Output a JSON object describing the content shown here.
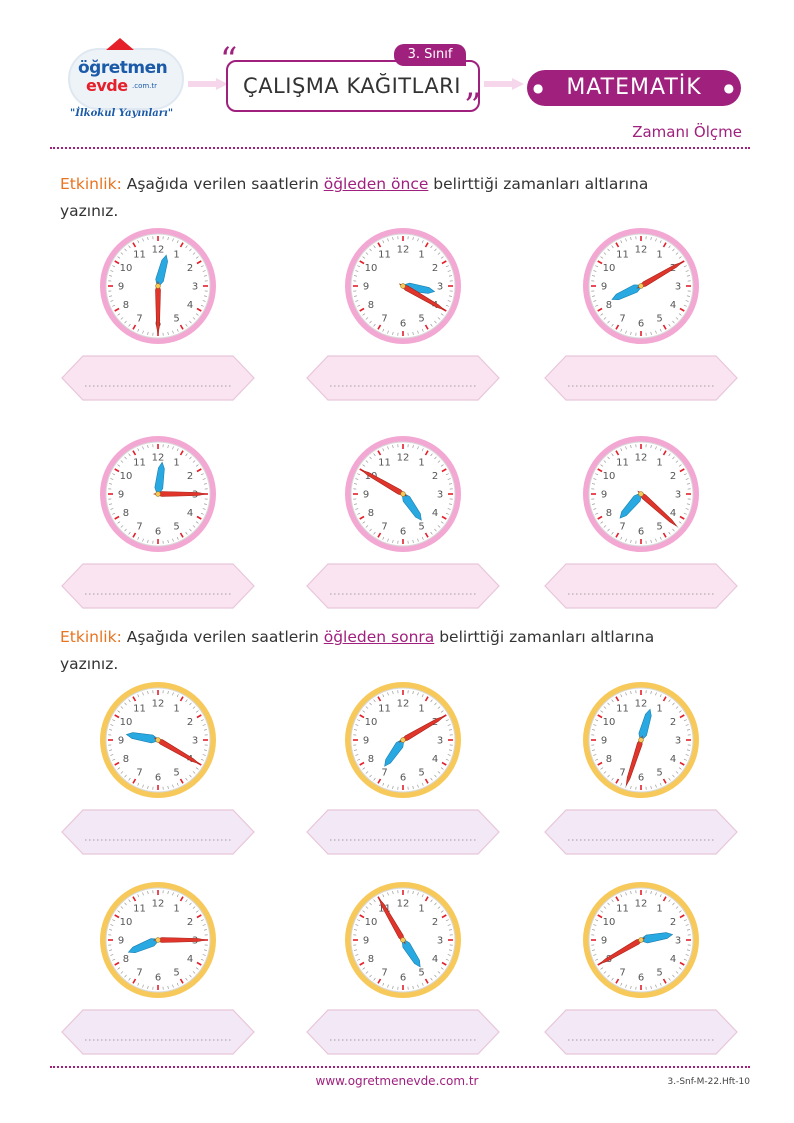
{
  "header": {
    "logo_line1": "öğretmen",
    "logo_line2": "evde",
    "logo_domain": ".com.tr",
    "logo_tagline": "\"İlkokul Yayınları\"",
    "grade": "3. Sınıf",
    "title": "ÇALIŞMA KAĞITLARI",
    "subject": "MATEMATİK",
    "topic": "Zamanı Ölçme"
  },
  "section1": {
    "label": "Etkinlik:",
    "text_before": " Aşağıda verilen saatlerin ",
    "highlight": "öğleden önce",
    "text_after": " belirttiği zamanları altlarına yazınız.",
    "ring_color": "#f2a8d2",
    "box_color": "#fbe4f1",
    "clocks": [
      {
        "hour": 12,
        "minute": 30
      },
      {
        "hour": 3,
        "minute": 20
      },
      {
        "hour": 8,
        "minute": 10
      },
      {
        "hour": 12,
        "minute": 15
      },
      {
        "hour": 4,
        "minute": 50
      },
      {
        "hour": 7,
        "minute": 22
      }
    ]
  },
  "section2": {
    "label": "Etkinlik:",
    "text_before": " Aşağıda verilen saatlerin ",
    "highlight": "öğleden sonra",
    "text_after": " belirttiği zamanları altlarına yazınız.",
    "ring_color": "#f6c95a",
    "box_color": "#f3e8f5",
    "clocks": [
      {
        "hour": 9,
        "minute": 20
      },
      {
        "hour": 7,
        "minute": 10
      },
      {
        "hour": 12,
        "minute": 33
      },
      {
        "hour": 8,
        "minute": 15
      },
      {
        "hour": 4,
        "minute": 55
      },
      {
        "hour": 2,
        "minute": 40
      }
    ]
  },
  "footer": {
    "url": "www.ogretmenevde.com.tr",
    "code": "3.-Snf-M-22.Hft-10"
  }
}
